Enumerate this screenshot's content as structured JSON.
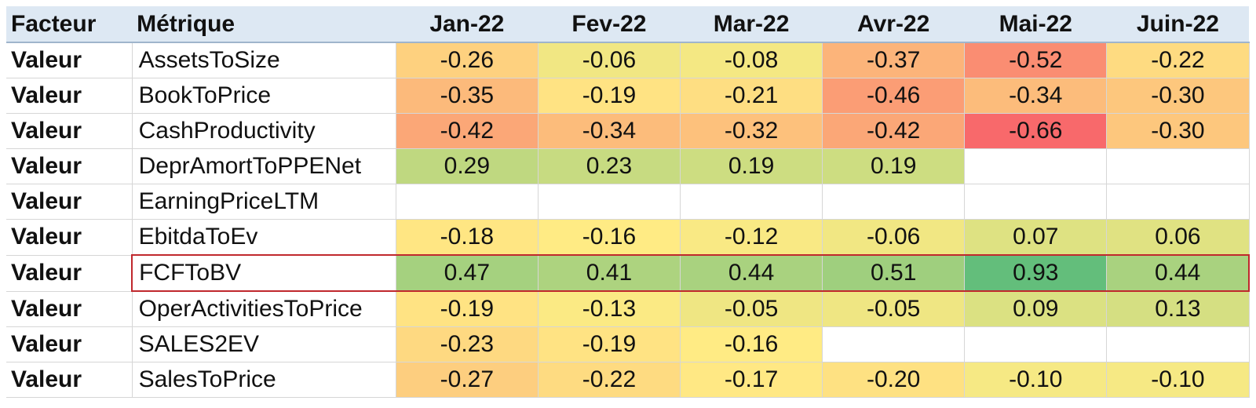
{
  "chart_data": {
    "type": "heatmap",
    "headers": [
      "Facteur",
      "Métrique",
      "Jan-22",
      "Fev-22",
      "Mar-22",
      "Avr-22",
      "Mai-22",
      "Juin-22"
    ],
    "rows": [
      {
        "factor": "Valeur",
        "metric": "AssetsToSize",
        "values": [
          "-0.26",
          "-0.06",
          "-0.08",
          "-0.37",
          "-0.52",
          "-0.22"
        ]
      },
      {
        "factor": "Valeur",
        "metric": "BookToPrice",
        "values": [
          "-0.35",
          "-0.19",
          "-0.21",
          "-0.46",
          "-0.34",
          "-0.30"
        ]
      },
      {
        "factor": "Valeur",
        "metric": "CashProductivity",
        "values": [
          "-0.42",
          "-0.34",
          "-0.32",
          "-0.42",
          "-0.66",
          "-0.30"
        ]
      },
      {
        "factor": "Valeur",
        "metric": "DeprAmortToPPENet",
        "values": [
          "0.29",
          "0.23",
          "0.19",
          "0.19",
          "",
          ""
        ]
      },
      {
        "factor": "Valeur",
        "metric": "EarningPriceLTM",
        "values": [
          "",
          "",
          "",
          "",
          "",
          ""
        ]
      },
      {
        "factor": "Valeur",
        "metric": "EbitdaToEv",
        "values": [
          "-0.18",
          "-0.16",
          "-0.12",
          "-0.06",
          "0.07",
          "0.06"
        ]
      },
      {
        "factor": "Valeur",
        "metric": "FCFToBV",
        "values": [
          "0.47",
          "0.41",
          "0.44",
          "0.51",
          "0.93",
          "0.44"
        ],
        "highlighted": true
      },
      {
        "factor": "Valeur",
        "metric": "OperActivitiesToPrice",
        "values": [
          "-0.19",
          "-0.13",
          "-0.05",
          "-0.05",
          "0.09",
          "0.13"
        ]
      },
      {
        "factor": "Valeur",
        "metric": "SALES2EV",
        "values": [
          "-0.23",
          "-0.19",
          "-0.16",
          "",
          "",
          ""
        ]
      },
      {
        "factor": "Valeur",
        "metric": "SalesToPrice",
        "values": [
          "-0.27",
          "-0.22",
          "-0.17",
          "-0.20",
          "-0.10",
          "-0.10"
        ]
      }
    ],
    "color_scale": {
      "low": "#f8696b",
      "mid": "#ffeb84",
      "high": "#63be7b"
    },
    "highlight_color": "#c0282d"
  }
}
